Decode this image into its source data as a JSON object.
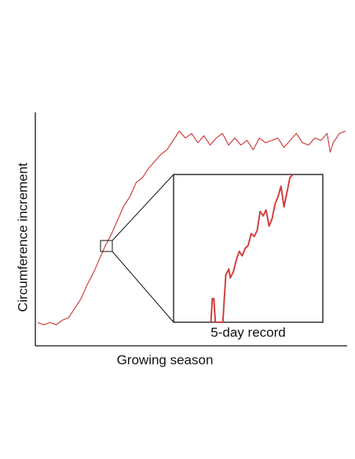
{
  "chart_data": {
    "type": "line",
    "x_label": "Growing season",
    "y_label": "Circumference increment",
    "color": "#d04040",
    "xlim": [
      0,
      100
    ],
    "ylim": [
      0,
      100
    ],
    "x": [
      0,
      2,
      4,
      6,
      8,
      10,
      12,
      14,
      16,
      18,
      20,
      22,
      24,
      26,
      28,
      30,
      32,
      34,
      36,
      38,
      40,
      42,
      44,
      46,
      48,
      50,
      52,
      54,
      56,
      58,
      60,
      62,
      64,
      66,
      68,
      70,
      72,
      74,
      76,
      78,
      80,
      82,
      84,
      86,
      88,
      90,
      92,
      94,
      95,
      96,
      98,
      100
    ],
    "values": [
      10,
      9,
      10,
      9,
      11,
      12,
      16,
      20,
      26,
      31,
      37,
      43,
      48,
      54,
      60,
      64,
      70,
      72,
      76,
      79,
      82,
      84,
      88,
      92,
      89,
      91,
      87,
      90,
      86,
      89,
      91,
      86,
      89,
      86,
      88,
      84,
      89,
      87,
      88,
      89,
      85,
      88,
      91,
      87,
      86,
      89,
      88,
      91,
      83,
      87,
      91,
      92
    ],
    "inset": {
      "label": "5-day record",
      "xlim": [
        0,
        100
      ],
      "ylim": [
        0,
        100
      ],
      "x": [
        25,
        26,
        27,
        28,
        29,
        33,
        35,
        37,
        38,
        40,
        42,
        44,
        46,
        48,
        50,
        52,
        54,
        56,
        58,
        60,
        62,
        64,
        66,
        68,
        70,
        72,
        74,
        76,
        78,
        80
      ],
      "values": [
        0,
        16,
        16,
        0,
        0,
        0,
        32,
        36,
        30,
        34,
        42,
        48,
        45,
        50,
        52,
        60,
        58,
        62,
        75,
        72,
        76,
        65,
        70,
        80,
        85,
        92,
        78,
        88,
        98,
        100
      ]
    }
  }
}
